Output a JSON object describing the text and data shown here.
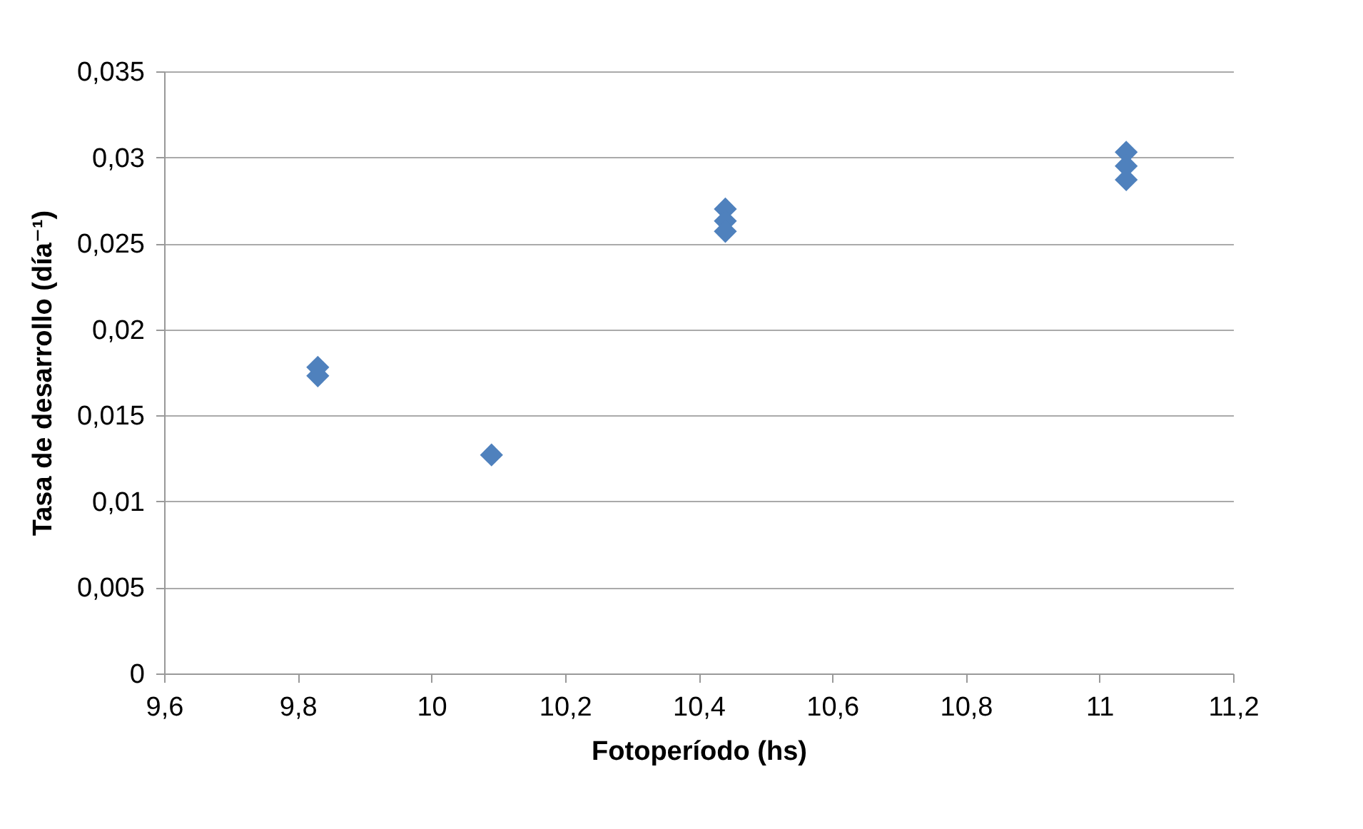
{
  "chart_data": {
    "type": "scatter",
    "xlabel": "Fotoperíodo (hs)",
    "ylabel": "Tasa de desarrollo (día⁻¹)",
    "x": [
      9.83,
      9.83,
      10.09,
      10.44,
      10.44,
      10.44,
      11.04,
      11.04,
      11.04
    ],
    "series": [
      {
        "color": "#4f81bd",
        "values": [
          0.0178,
          0.0173,
          0.0127,
          0.027,
          0.0263,
          0.0257,
          0.0303,
          0.0295,
          0.0287
        ]
      }
    ],
    "xlim": [
      9.6,
      11.2
    ],
    "xticks": [
      {
        "value": 9.6,
        "label": "9,6"
      },
      {
        "value": 9.8,
        "label": "9,8"
      },
      {
        "value": 10,
        "label": "10"
      },
      {
        "value": 10.2,
        "label": "10,2"
      },
      {
        "value": 10.4,
        "label": "10,4"
      },
      {
        "value": 10.6,
        "label": "10,6"
      },
      {
        "value": 10.8,
        "label": "10,8"
      },
      {
        "value": 11,
        "label": "11"
      },
      {
        "value": 11.2,
        "label": "11,2"
      }
    ],
    "ylim": [
      0,
      0.035
    ],
    "yticks": [
      0,
      {
        "value": 0.005,
        "label": "0,005"
      },
      {
        "value": 0.01,
        "label": "0,01"
      },
      {
        "value": 0.015,
        "label": "0,015"
      },
      {
        "value": 0.02,
        "label": "0,02"
      },
      {
        "value": 0.025,
        "label": "0,025"
      },
      {
        "value": 0.03,
        "label": "0,03"
      },
      {
        "value": 0.035,
        "label": "0,035"
      }
    ],
    "grid": "y",
    "marker": "diamond"
  }
}
